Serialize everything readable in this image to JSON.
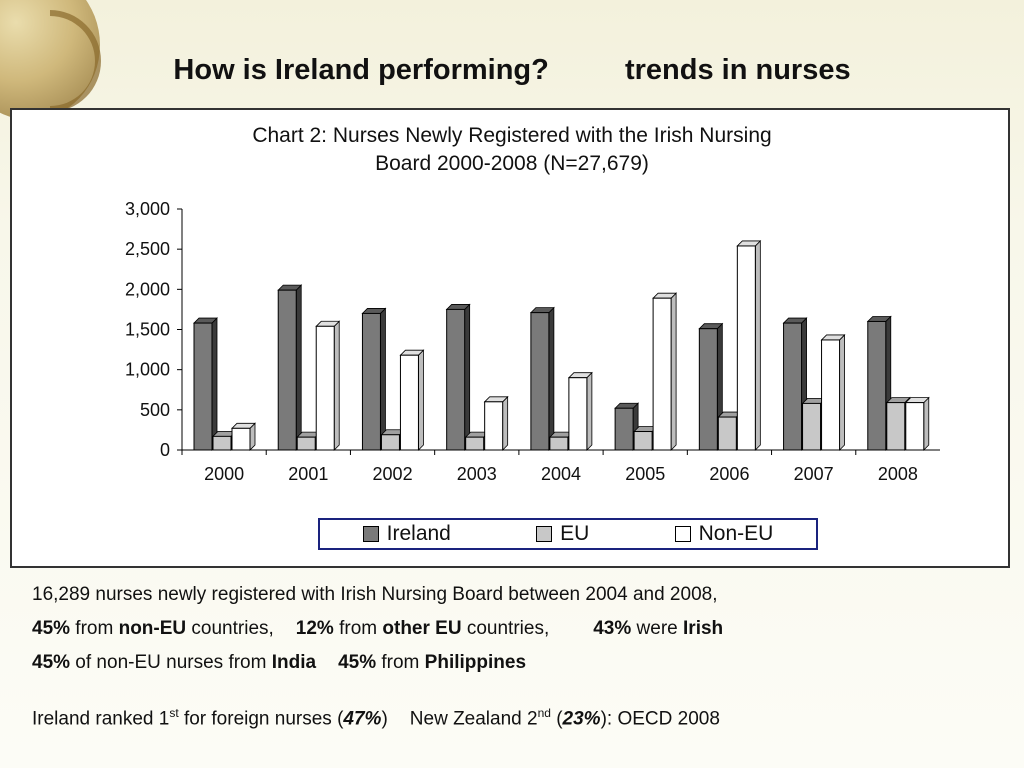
{
  "slide": {
    "title_left": "How is Ireland performing?",
    "title_right": "trends in nurses"
  },
  "chart_data": {
    "type": "bar",
    "title_line1": "Chart 2: Nurses Newly Registered with the Irish Nursing",
    "title_line2": "Board 2000-2008 (N=27,679)",
    "categories": [
      "2000",
      "2001",
      "2002",
      "2003",
      "2004",
      "2005",
      "2006",
      "2007",
      "2008"
    ],
    "series": [
      {
        "name": "Ireland",
        "color": "#7a7a7a",
        "values": [
          1580,
          1990,
          1700,
          1750,
          1710,
          520,
          1510,
          1580,
          1600
        ]
      },
      {
        "name": "EU",
        "color": "#c8c8c8",
        "values": [
          170,
          160,
          190,
          160,
          160,
          230,
          410,
          580,
          590
        ]
      },
      {
        "name": "Non-EU",
        "color": "#ffffff",
        "values": [
          270,
          1540,
          1180,
          600,
          900,
          1890,
          2540,
          1370,
          590
        ]
      }
    ],
    "ylim": [
      0,
      3000
    ],
    "yticks": [
      "0",
      "500",
      "1,000",
      "1,500",
      "2,000",
      "2,500",
      "3,000"
    ],
    "xlabel": "",
    "ylabel": "",
    "legend_position": "bottom",
    "grid": false
  },
  "notes": {
    "line1": "16,289 nurses newly registered with Irish Nursing Board between 2004 and 2008,",
    "line2": {
      "p1": "45%",
      "t1": " from ",
      "b1": "non-EU",
      "t2": " countries,",
      "p2": "12%",
      "t3": " from ",
      "b2": "other EU",
      "t4": " countries,",
      "p3": "43%",
      "t5": " were ",
      "b3": "Irish"
    },
    "line3": {
      "p1": "45%",
      "t1": " of non-EU nurses from ",
      "b1": "India",
      "p2": "45%",
      "t2": " from ",
      "b2": "Philippines"
    },
    "line4": {
      "t1": "Ireland ranked 1",
      "s1": "st",
      "t2": " for foreign nurses (",
      "v1": "47%",
      "t3": ")",
      "t4": "New Zealand 2",
      "s2": "nd",
      "t5": " (",
      "v2": "23%",
      "t6": "):  OECD 2008"
    }
  }
}
